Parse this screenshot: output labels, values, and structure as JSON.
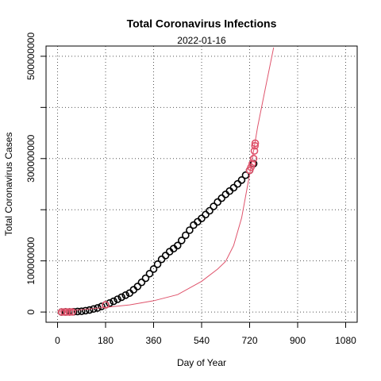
{
  "chart_data": {
    "type": "scatter",
    "title": "Total Coronavirus Infections",
    "subtitle": "2022-01-16",
    "x_label": "Day of Year",
    "y_label": "Total Coronavirus Cases",
    "xlim": [
      -43.2,
      1123.2
    ],
    "ylim": [
      -20000000,
      520000000
    ],
    "xticks": [
      0,
      180,
      360,
      540,
      720,
      900,
      1080
    ],
    "yticks": [
      0,
      100000000,
      {
        "value": 200000000,
        "label": null
      },
      300000000,
      {
        "value": 400000000,
        "label": null
      },
      500000000
    ],
    "grid": true,
    "series": [
      {
        "style": "points",
        "color": "#000000",
        "x": [
          15,
          30,
          45,
          60,
          75,
          90,
          105,
          120,
          135,
          150,
          165,
          180,
          195,
          210,
          225,
          240,
          255,
          270,
          285,
          300,
          315,
          330,
          345,
          360,
          375,
          390,
          405,
          420,
          435,
          450,
          465,
          480,
          495,
          510,
          525,
          540,
          555,
          570,
          585,
          600,
          615,
          630,
          645,
          660,
          675,
          690,
          705,
          720,
          735
        ],
        "values": [
          0,
          200000,
          300000,
          500000,
          1000000,
          1500000,
          2700000,
          4000000,
          6000000,
          8000000,
          11000000,
          14000000,
          17500000,
          21000000,
          25000000,
          29000000,
          33000000,
          37000000,
          43500000,
          50000000,
          58000000,
          66000000,
          75000000,
          84000000,
          93500000,
          103000000,
          110500000,
          118000000,
          124000000,
          130000000,
          140000000,
          150000000,
          160000000,
          170000000,
          176500000,
          183000000,
          190500000,
          198000000,
          206500000,
          215000000,
          222500000,
          230000000,
          236500000,
          243000000,
          250500000,
          258000000,
          267500000,
          277000000,
          290000000
        ]
      },
      {
        "style": "points",
        "color": "#df536b",
        "x": [
          15,
          25,
          35,
          45,
          55,
          180,
          720,
          725,
          730,
          735,
          738,
          740,
          741
        ],
        "values": [
          0,
          0,
          0,
          0,
          200000,
          14000000,
          277000000,
          283000000,
          290000000,
          300000000,
          315000000,
          325000000,
          330000000
        ]
      },
      {
        "style": "line",
        "color": "#df536b",
        "x": [
          0,
          90,
          180,
          270,
          360,
          450,
          540,
          600,
          630,
          660,
          690,
          720,
          750,
          780,
          810
        ],
        "values": [
          1500000,
          4600000,
          9000000,
          14000000,
          22000000,
          34000000,
          60000000,
          84000000,
          99000000,
          130000000,
          184000000,
          269000000,
          362000000,
          440000000,
          517000000
        ]
      }
    ]
  }
}
